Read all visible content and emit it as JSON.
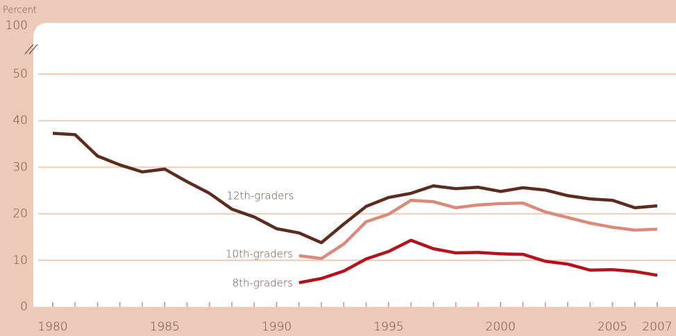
{
  "chart_data": {
    "type": "line",
    "y_axis_label": "Percent",
    "x": [
      1980,
      1981,
      1982,
      1983,
      1984,
      1985,
      1986,
      1987,
      1988,
      1989,
      1990,
      1991,
      1992,
      1993,
      1994,
      1995,
      1996,
      1997,
      1998,
      1999,
      2000,
      2001,
      2002,
      2003,
      2004,
      2005,
      2006,
      2007
    ],
    "series": [
      {
        "name": "12th-graders",
        "color": "#5c2d1e",
        "values": [
          37.3,
          37.0,
          32.4,
          30.5,
          29.0,
          29.6,
          26.9,
          24.4,
          21.0,
          19.3,
          16.8,
          15.9,
          13.8,
          17.8,
          21.6,
          23.5,
          24.4,
          26.0,
          25.4,
          25.7,
          24.8,
          25.6,
          25.1,
          23.9,
          23.2,
          22.9,
          21.3,
          21.7
        ]
      },
      {
        "name": "10th-graders",
        "color": "#d98a78",
        "values": [
          null,
          null,
          null,
          null,
          null,
          null,
          null,
          null,
          null,
          null,
          null,
          11.0,
          10.4,
          13.5,
          18.3,
          19.9,
          22.9,
          22.6,
          21.3,
          21.9,
          22.2,
          22.3,
          20.4,
          19.2,
          18.0,
          17.1,
          16.5,
          16.7
        ]
      },
      {
        "name": "8th-graders",
        "color": "#b5121b",
        "values": [
          null,
          null,
          null,
          null,
          null,
          null,
          null,
          null,
          null,
          null,
          null,
          5.2,
          6.1,
          7.7,
          10.3,
          11.9,
          14.3,
          12.5,
          11.6,
          11.7,
          11.4,
          11.3,
          9.8,
          9.2,
          7.9,
          8.0,
          7.6,
          6.8
        ]
      }
    ],
    "xlim": [
      1980,
      2007
    ],
    "xticks": [
      1980,
      1985,
      1990,
      1995,
      2000,
      2005,
      2007
    ],
    "ylim": [
      0,
      100
    ],
    "yticks": [
      0,
      10,
      20,
      30,
      40,
      50,
      100
    ],
    "axis_break": [
      50,
      100
    ],
    "grid": true
  }
}
